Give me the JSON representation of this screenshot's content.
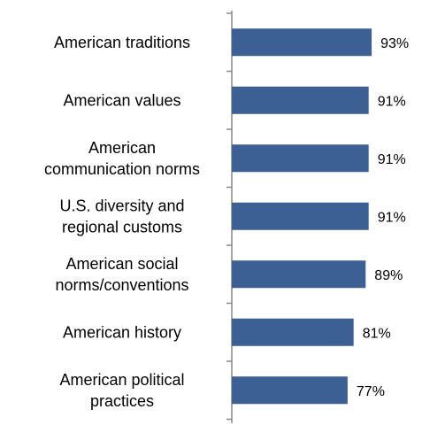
{
  "chart_data": {
    "type": "bar",
    "orientation": "horizontal",
    "categories": [
      [
        "American traditions"
      ],
      [
        "American values"
      ],
      [
        "American",
        "communication norms"
      ],
      [
        "U.S. diversity and",
        "regional customs"
      ],
      [
        "American social",
        "norms/conventions"
      ],
      [
        "American history"
      ],
      [
        "American political",
        "practices"
      ]
    ],
    "values": [
      93,
      91,
      91,
      91,
      89,
      81,
      77
    ],
    "value_labels": [
      "93%",
      "91%",
      "91%",
      "91%",
      "89%",
      "81%",
      "77%"
    ],
    "xlim": [
      0,
      100
    ],
    "grid": false,
    "legend": "none",
    "bar_color": "#3c5f94",
    "axis_color": "#888888"
  }
}
